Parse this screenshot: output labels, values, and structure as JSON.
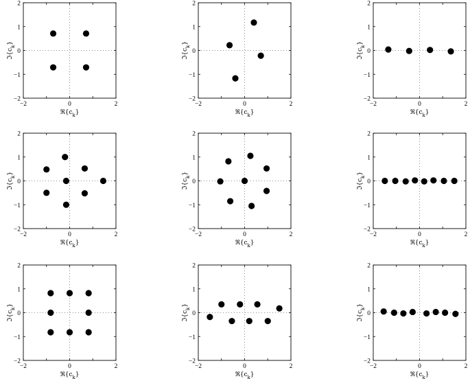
{
  "chart_data": [
    {
      "type": "scatter",
      "xlabel": "ℜ{c_k}",
      "ylabel": "ℑ{c_k}",
      "xlim": [
        -2,
        2
      ],
      "ylim": [
        -2,
        2
      ],
      "grid": true,
      "x": [
        -0.71,
        0.71,
        -0.71,
        0.71
      ],
      "y": [
        0.71,
        0.71,
        -0.71,
        -0.71
      ]
    },
    {
      "type": "scatter",
      "xlabel": "ℜ{c_k}",
      "ylabel": "ℑ{c_k}",
      "xlim": [
        -2,
        2
      ],
      "ylim": [
        -2,
        2
      ],
      "grid": true,
      "x": [
        0.4,
        -0.65,
        0.7,
        -0.4
      ],
      "y": [
        1.17,
        0.22,
        -0.22,
        -1.17
      ]
    },
    {
      "type": "scatter",
      "xlabel": "ℜ{c_k}",
      "ylabel": "ℑ{c_k}",
      "xlim": [
        -2,
        2
      ],
      "ylim": [
        -2,
        2
      ],
      "grid": true,
      "x": [
        -1.35,
        -0.45,
        0.45,
        1.35
      ],
      "y": [
        0.04,
        -0.02,
        0.02,
        -0.04
      ]
    },
    {
      "type": "scatter",
      "xlabel": "ℜ{c_k}",
      "ylabel": "ℑ{c_k}",
      "xlim": [
        -2,
        2
      ],
      "ylim": [
        -2,
        2
      ],
      "grid": true,
      "x": [
        -0.2,
        -1.0,
        0.65,
        -0.15,
        1.45,
        -1.0,
        0.65,
        -0.15
      ],
      "y": [
        1.0,
        0.48,
        0.52,
        0.0,
        0.0,
        -0.5,
        -0.52,
        -1.0
      ]
    },
    {
      "type": "scatter",
      "xlabel": "ℜ{c_k}",
      "ylabel": "ℑ{c_k}",
      "xlim": [
        -2,
        2
      ],
      "ylim": [
        -2,
        2
      ],
      "grid": true,
      "x": [
        0.25,
        -0.7,
        0.95,
        -1.05,
        0.0,
        0.95,
        -0.62,
        0.3
      ],
      "y": [
        1.05,
        0.82,
        0.52,
        -0.02,
        0.0,
        -0.42,
        -0.85,
        -1.05
      ]
    },
    {
      "type": "scatter",
      "xlabel": "ℜ{c_k}",
      "ylabel": "ℑ{c_k}",
      "xlim": [
        -2,
        2
      ],
      "ylim": [
        -2,
        2
      ],
      "grid": true,
      "x": [
        -1.5,
        -1.05,
        -0.6,
        -0.2,
        0.2,
        0.6,
        1.05,
        1.5
      ],
      "y": [
        0.0,
        0.0,
        -0.02,
        0.02,
        -0.02,
        0.02,
        0.0,
        0.0
      ]
    },
    {
      "type": "scatter",
      "xlabel": "ℜ{c_k}",
      "ylabel": "ℑ{c_k}",
      "xlim": [
        -2,
        2
      ],
      "ylim": [
        -2,
        2
      ],
      "grid": true,
      "x": [
        -0.82,
        0.0,
        0.82,
        -0.82,
        0.82,
        -0.82,
        0.0,
        0.82
      ],
      "y": [
        0.82,
        0.82,
        0.82,
        0.0,
        0.0,
        -0.82,
        -0.82,
        -0.82
      ]
    },
    {
      "type": "scatter",
      "xlabel": "ℜ{c_k}",
      "ylabel": "ℑ{c_k}",
      "xlim": [
        -2,
        2
      ],
      "ylim": [
        -2,
        2
      ],
      "grid": true,
      "x": [
        -1.5,
        -1.0,
        -0.55,
        -0.2,
        0.2,
        0.55,
        1.0,
        1.5
      ],
      "y": [
        -0.18,
        0.35,
        -0.35,
        0.35,
        -0.35,
        0.35,
        -0.35,
        0.18
      ]
    },
    {
      "type": "scatter",
      "xlabel": "ℜ{c_k}",
      "ylabel": "ℑ{c_k}",
      "xlim": [
        -2,
        2
      ],
      "ylim": [
        -2,
        2
      ],
      "grid": true,
      "x": [
        -1.55,
        -1.1,
        -0.7,
        -0.3,
        0.3,
        0.7,
        1.1,
        1.55
      ],
      "y": [
        0.05,
        0.0,
        -0.03,
        0.03,
        -0.03,
        0.03,
        0.0,
        -0.05
      ]
    }
  ]
}
